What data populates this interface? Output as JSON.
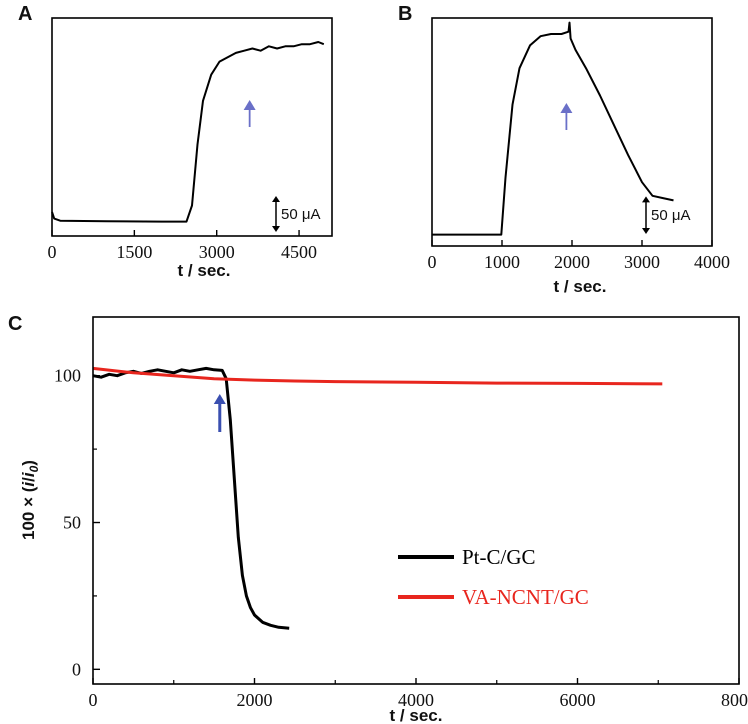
{
  "chart_data": [
    {
      "panel": "A",
      "type": "line",
      "xlabel": "t / sec.",
      "ylabel": "",
      "xlim": [
        0,
        5100
      ],
      "ylim": [
        0,
        100
      ],
      "x_ticks": [
        0,
        1500,
        3000,
        4500
      ],
      "x_tick_labels": [
        "0",
        "1500",
        "3000",
        "4500"
      ],
      "grid": false,
      "scale_bar_label": "50 μA",
      "scale_bar_value": 50,
      "arrow_at_x": 3600,
      "arrow_color": "#6a70c8",
      "series": [
        {
          "color": "#000000",
          "x": [
            0,
            40,
            150,
            1000,
            2000,
            2450,
            2550,
            2650,
            2750,
            2900,
            3050,
            3200,
            3350,
            3500,
            3650,
            3800,
            3950,
            4100,
            4250,
            4400,
            4550,
            4700,
            4850,
            4950
          ],
          "y": [
            11,
            8,
            7,
            6.8,
            6.6,
            6.6,
            14,
            42,
            62,
            74,
            80,
            82,
            84,
            85,
            86,
            85,
            87,
            86,
            87,
            87,
            88,
            88,
            89,
            88
          ]
        }
      ]
    },
    {
      "panel": "B",
      "type": "line",
      "xlabel": "t / sec.",
      "ylabel": "",
      "xlim": [
        0,
        4000
      ],
      "ylim": [
        0,
        100
      ],
      "x_ticks": [
        0,
        1000,
        2000,
        3000,
        4000
      ],
      "x_tick_labels": [
        "0",
        "1000",
        "2000",
        "3000",
        "4000"
      ],
      "grid": false,
      "scale_bar_label": "50 μA",
      "scale_bar_value": 50,
      "arrow_at_x": 1920,
      "arrow_color": "#6a70c8",
      "series": [
        {
          "color": "#000000",
          "x": [
            0,
            500,
            990,
            1050,
            1150,
            1250,
            1400,
            1550,
            1700,
            1850,
            1950,
            1965,
            1980,
            2050,
            2200,
            2400,
            2600,
            2800,
            3000,
            3150,
            3300,
            3450
          ],
          "y": [
            5,
            5,
            5,
            30,
            62,
            78,
            88,
            92,
            93,
            93,
            94,
            98,
            91,
            86,
            78,
            66,
            53,
            40,
            28,
            22,
            21,
            20
          ]
        }
      ]
    },
    {
      "panel": "C",
      "type": "line",
      "xlabel": "t / sec.",
      "ylabel": "100 × (i/i0)",
      "xlim": [
        0,
        8000
      ],
      "ylim": [
        -5,
        120
      ],
      "x_ticks": [
        0,
        2000,
        4000,
        6000,
        8000
      ],
      "x_tick_labels": [
        "0",
        "2000",
        "4000",
        "6000",
        "8000"
      ],
      "y_ticks": [
        0,
        50,
        100
      ],
      "y_tick_labels": [
        "0",
        "50",
        "100"
      ],
      "grid": false,
      "legend_position": "lower-right",
      "arrow_at_x": 1570,
      "arrow_color": "#3a4fb0",
      "series": [
        {
          "name": "Pt-C/GC",
          "color": "#000000",
          "x": [
            0,
            100,
            200,
            300,
            400,
            500,
            600,
            700,
            800,
            900,
            1000,
            1100,
            1200,
            1300,
            1400,
            1500,
            1600,
            1650,
            1700,
            1750,
            1800,
            1850,
            1900,
            1950,
            2000,
            2100,
            2200,
            2300,
            2430
          ],
          "y": [
            100,
            99.5,
            100.5,
            100,
            101,
            101.5,
            100.8,
            101.5,
            102,
            101.5,
            101,
            102,
            101.5,
            102,
            102.5,
            102,
            101.8,
            99,
            85,
            65,
            45,
            32,
            25,
            21,
            18.5,
            16,
            15,
            14.3,
            14
          ]
        },
        {
          "name": "VA-NCNT/GC",
          "color": "#e8261e",
          "x": [
            0,
            500,
            1000,
            1500,
            2000,
            2500,
            3000,
            4000,
            5000,
            6000,
            7050
          ],
          "y": [
            102.5,
            101,
            100,
            99,
            98.5,
            98.2,
            98,
            97.8,
            97.5,
            97.4,
            97.2
          ]
        }
      ]
    }
  ]
}
